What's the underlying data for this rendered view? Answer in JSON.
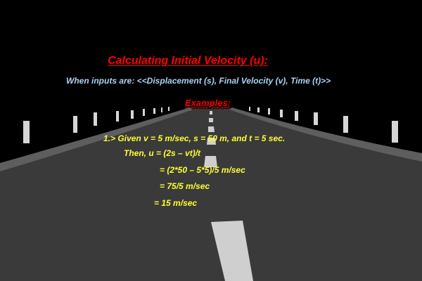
{
  "colors": {
    "background": "#000000",
    "road": "#3a3a3a",
    "road_edge": "#5e5e5e",
    "lane_marking": "#cfcfcf",
    "post": "#d6d6d6",
    "title": "#ff0000",
    "subtitle": "#a9d3f5",
    "examples": "#ff0000",
    "example_text": "#ffff33"
  },
  "title": "Calculating Initial Velocity (u):",
  "subtitle": "When inputs are: <<Displacement (s), Final Velocity (v), Time (t)>>",
  "examples_heading": "Examples:",
  "example_lines": [
    "1.> Given v = 5 m/sec, s = 50 m, and t = 5 sec.",
    "Then, u = (2s – vt)/t",
    "= (2*50 – 5*5)/5 m/sec",
    "= 75/5  m/sec",
    "= 15 m/sec"
  ]
}
